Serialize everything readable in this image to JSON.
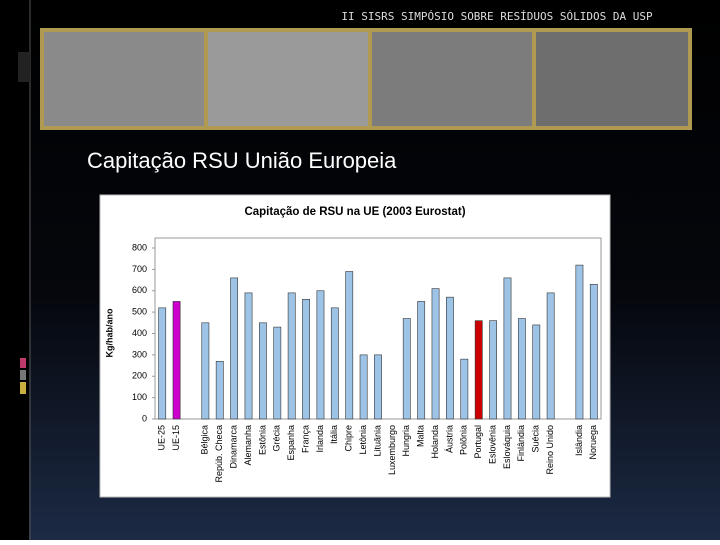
{
  "slide": {
    "header": "II SISRS SIMPÓSIO SOBRE RESÍDUOS SÓLIDOS  DA USP",
    "title": "Capitação RSU União Europeia"
  },
  "chart_data": {
    "type": "bar",
    "title": "Capitação de RSU na UE (2003 Eurostat)",
    "y_label": "Kg/hab/ano",
    "categories": [
      "UE-25",
      "UE-15",
      null,
      "Bélgica",
      "Repúb. Checa",
      "Dinamarca",
      "Alemanha",
      "Estônia",
      "Grécia",
      "Espanha",
      "França",
      "Irlanda",
      "Itália",
      "Chipre",
      "Letônia",
      "Lituânia",
      "Luxemburgo",
      "Hungria",
      "Malta",
      "Holanda",
      "Áustria",
      "Polônia",
      "Portugal",
      "Eslovênia",
      "Eslováquia",
      "Finlândia",
      "Suécia",
      "Reino Unido",
      null,
      "Islândia",
      "Noruega"
    ],
    "values": [
      520,
      550,
      null,
      450,
      270,
      660,
      590,
      450,
      430,
      590,
      560,
      600,
      520,
      690,
      300,
      300,
      null,
      470,
      550,
      610,
      570,
      280,
      460,
      460,
      660,
      470,
      440,
      590,
      null,
      720,
      630
    ],
    "colors": [
      "#9dc3e6",
      "#cc00cc",
      null,
      "#9dc3e6",
      "#9dc3e6",
      "#9dc3e6",
      "#9dc3e6",
      "#9dc3e6",
      "#9dc3e6",
      "#9dc3e6",
      "#9dc3e6",
      "#9dc3e6",
      "#9dc3e6",
      "#9dc3e6",
      "#9dc3e6",
      "#9dc3e6",
      "#9dc3e6",
      "#9dc3e6",
      "#9dc3e6",
      "#9dc3e6",
      "#9dc3e6",
      "#9dc3e6",
      "#cc0000",
      "#9dc3e6",
      "#9dc3e6",
      "#9dc3e6",
      "#9dc3e6",
      "#9dc3e6",
      null,
      "#9dc3e6",
      "#9dc3e6"
    ],
    "ylim": [
      0,
      800
    ],
    "yticks": [
      0,
      100,
      200,
      300,
      400,
      500,
      600,
      700,
      800
    ],
    "grid": false
  }
}
